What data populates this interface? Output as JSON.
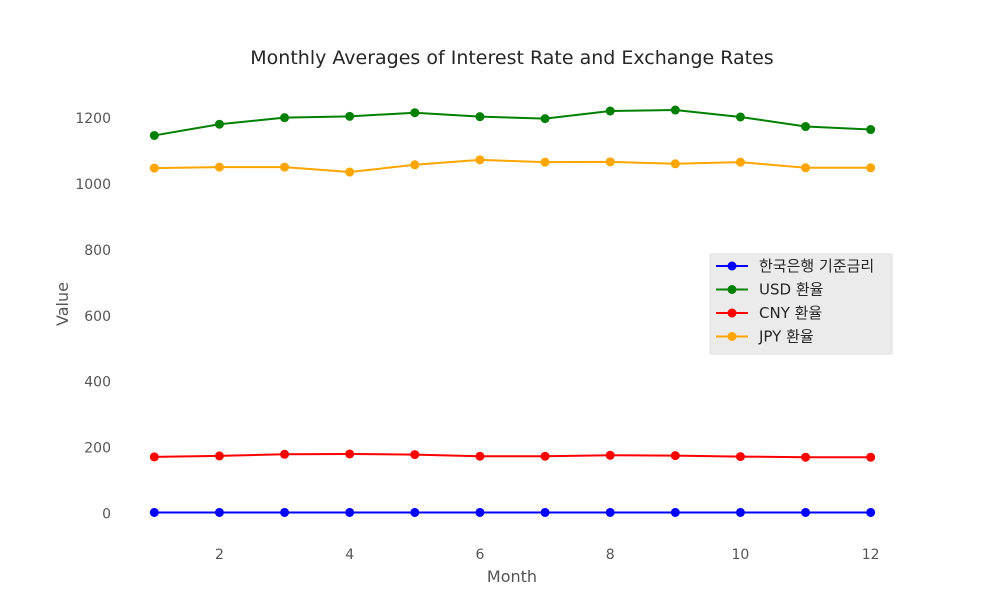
{
  "chart_data": {
    "type": "line",
    "title": "Monthly Averages of Interest Rate and Exchange Rates",
    "xlabel": "Month",
    "ylabel": "Value",
    "x": [
      1,
      2,
      3,
      4,
      5,
      6,
      7,
      8,
      9,
      10,
      11,
      12
    ],
    "xticks": [
      2,
      4,
      6,
      8,
      10,
      12
    ],
    "yticks": [
      0,
      200,
      400,
      600,
      800,
      1000,
      1200
    ],
    "xlim": [
      0.55,
      12.45
    ],
    "ylim": [
      -80,
      1300
    ],
    "grid": false,
    "legend_position": "center-right",
    "series": [
      {
        "name": "한국은행 기준금리",
        "color": "#0000ff",
        "values": [
          3.5,
          3.5,
          3.5,
          3.5,
          3.5,
          3.5,
          3.5,
          3.5,
          3.5,
          3.5,
          3.5,
          3.5
        ]
      },
      {
        "name": "USD 환율",
        "color": "#008000",
        "values": [
          1147,
          1181,
          1201,
          1205,
          1216,
          1204,
          1198,
          1221,
          1224,
          1203,
          1174,
          1165
        ]
      },
      {
        "name": "CNY 환율",
        "color": "#ff0000",
        "values": [
          172,
          175,
          180,
          181,
          179,
          174,
          174,
          177,
          176,
          173,
          171,
          171
        ]
      },
      {
        "name": "JPY 환율",
        "color": "#ffa500",
        "values": [
          1048,
          1051,
          1051,
          1036,
          1058,
          1073,
          1066,
          1067,
          1061,
          1066,
          1049,
          1049
        ]
      }
    ]
  }
}
